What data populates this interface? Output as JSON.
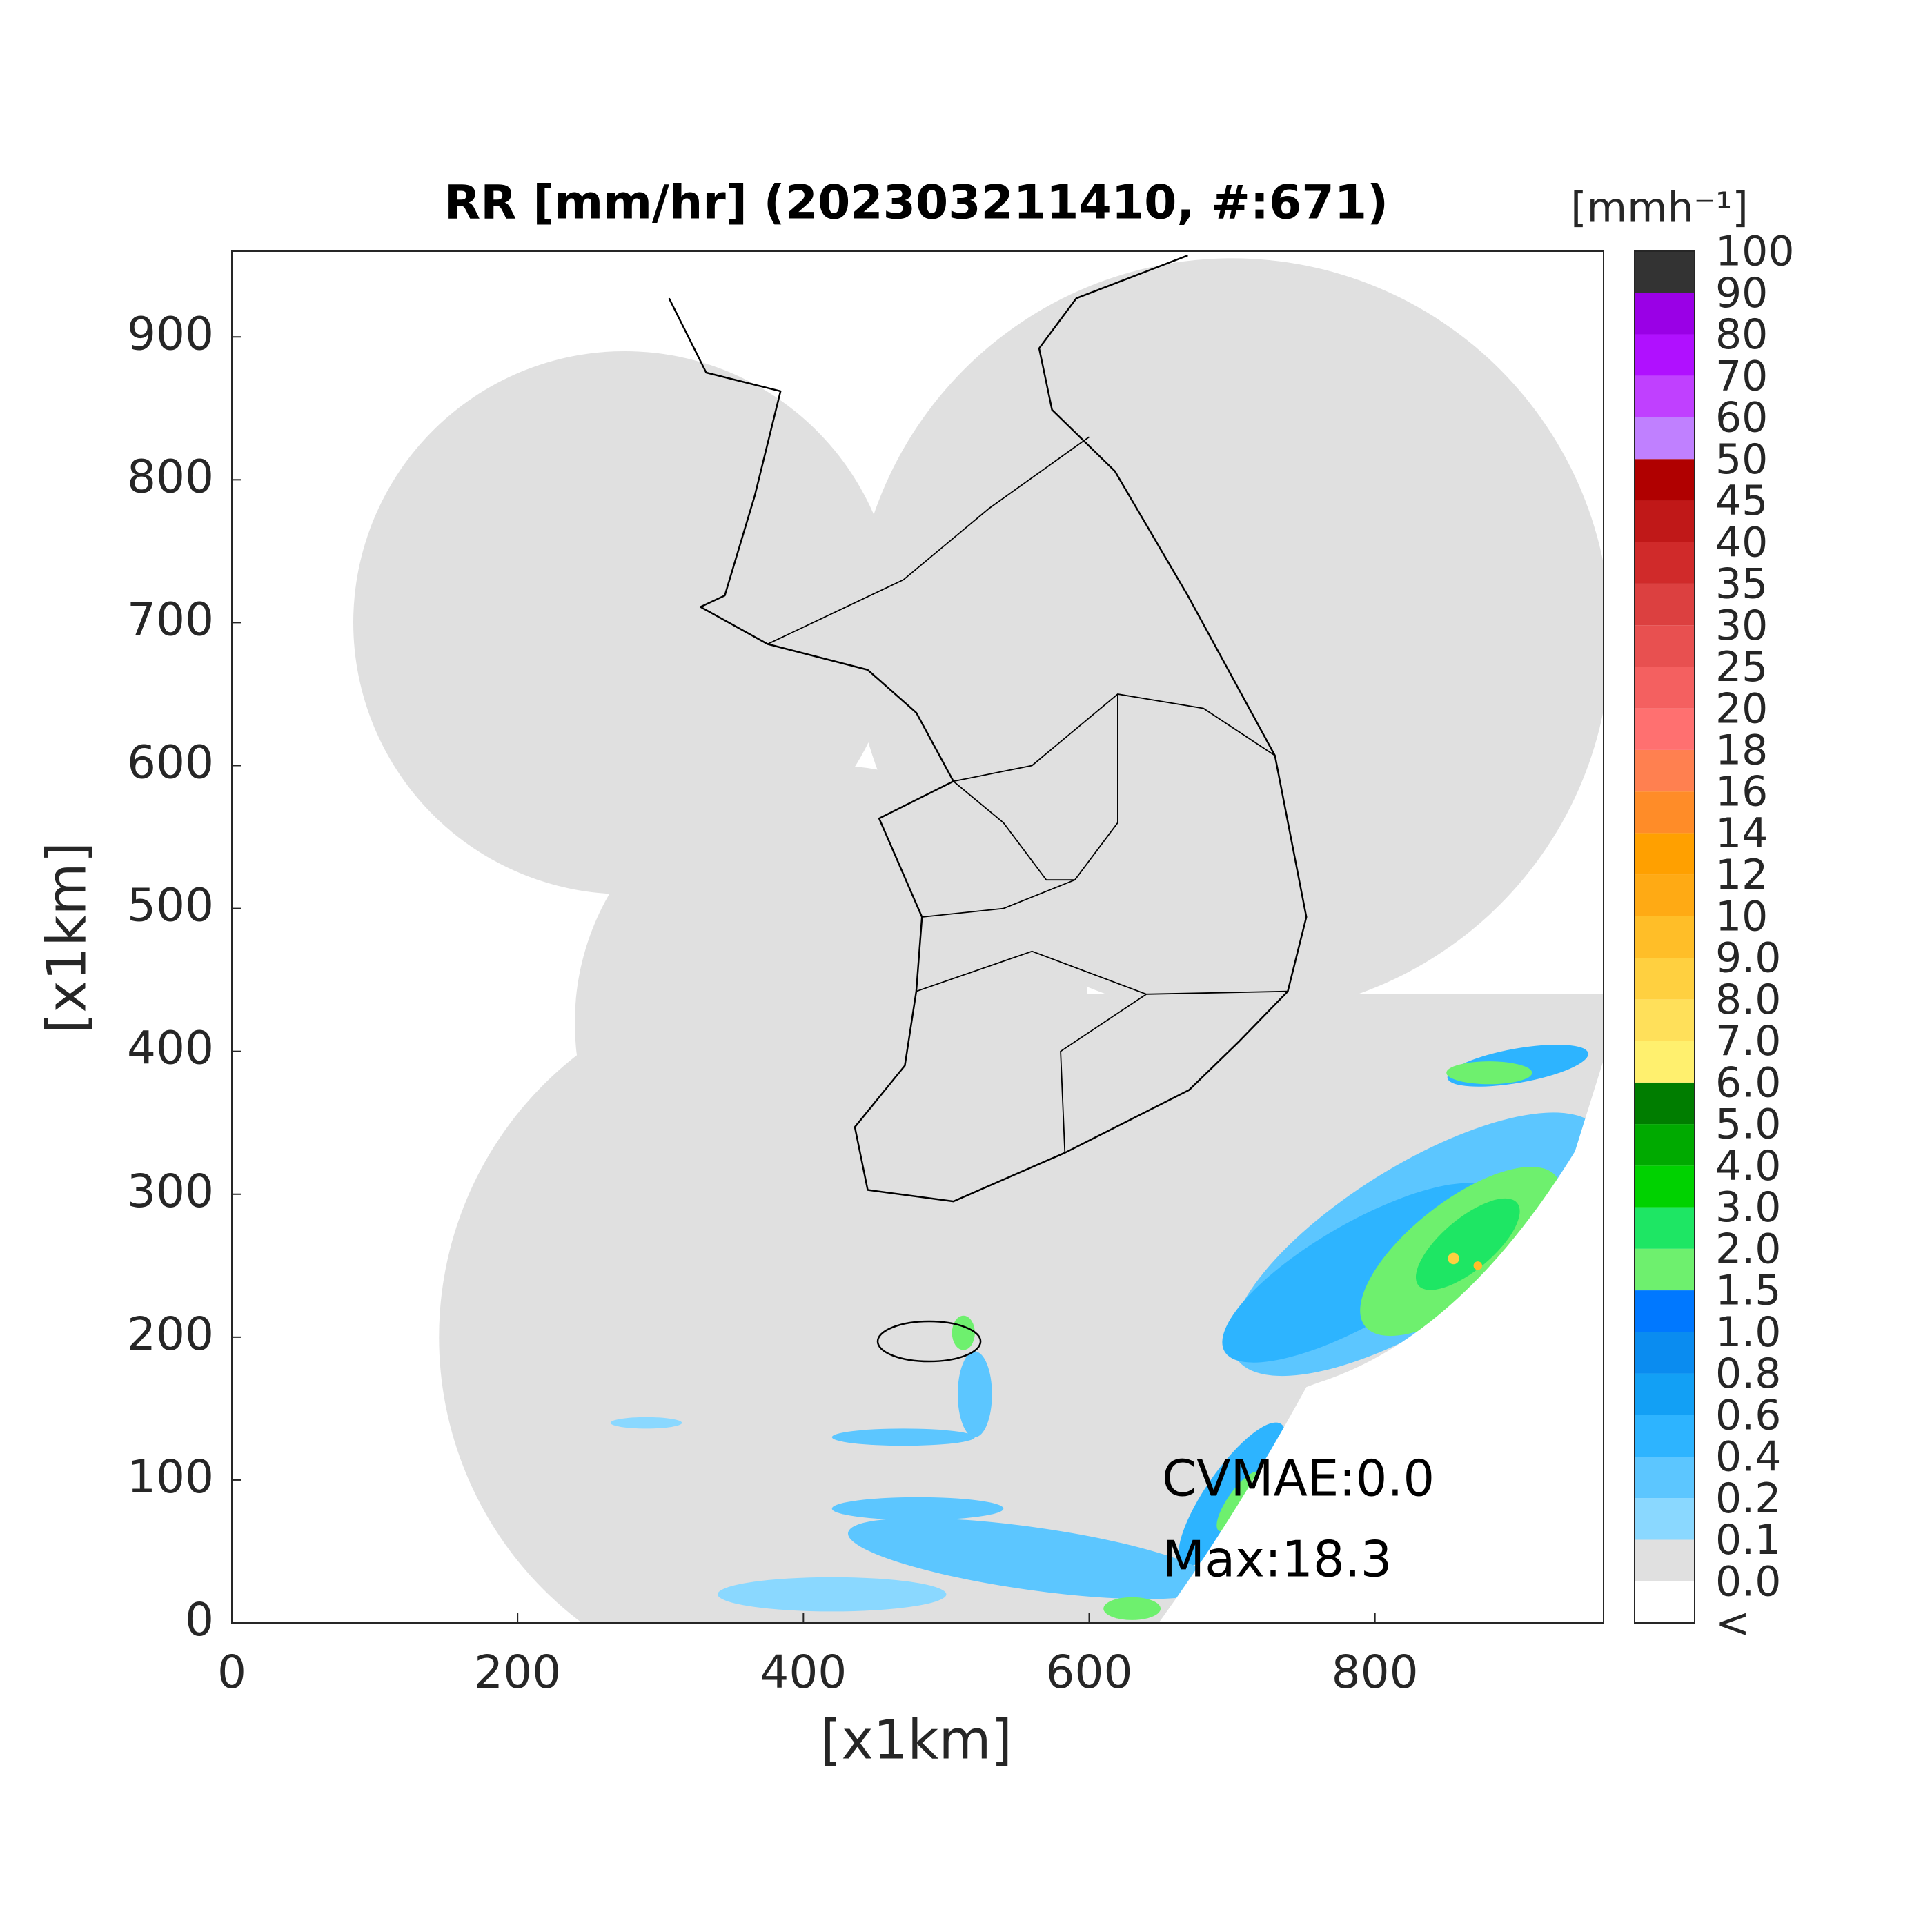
{
  "chart_data": {
    "type": "map",
    "title": "RR [mm/hr] (202303211410, #:671)",
    "xlabel": "[x1km]",
    "ylabel": "[x1km]",
    "xlim": [
      0,
      960
    ],
    "ylim": [
      0,
      960
    ],
    "xticks": [
      0,
      200,
      400,
      600,
      800
    ],
    "yticks": [
      0,
      100,
      200,
      300,
      400,
      500,
      600,
      700,
      800,
      900
    ],
    "annotations": [
      "CVMAE:0.0",
      "Max:18.3"
    ],
    "colorbar": {
      "title": "[mmh⁻¹]",
      "labels": [
        "<",
        "0.0",
        "0.1",
        "0.2",
        "0.4",
        "0.6",
        "0.8",
        "1.0",
        "1.5",
        "2.0",
        "3.0",
        "4.0",
        "5.0",
        "6.0",
        "7.0",
        "8.0",
        "9.0",
        "10",
        "12",
        "14",
        "16",
        "18",
        "20",
        "25",
        "30",
        "35",
        "40",
        "45",
        "50",
        "60",
        "70",
        "80",
        "90",
        "100"
      ],
      "colors": [
        "#ffffff",
        "#e0e0e0",
        "#8ad8ff",
        "#5cc6ff",
        "#2db4ff",
        "#12a0f5",
        "#0a8cf0",
        "#0078ff",
        "#6ef06e",
        "#1ee664",
        "#00d200",
        "#00aa00",
        "#007d00",
        "#fff06e",
        "#ffe05a",
        "#ffd040",
        "#ffbe28",
        "#ffaa14",
        "#ffa000",
        "#ff8c28",
        "#ff8050",
        "#ff7070",
        "#f46060",
        "#e85050",
        "#dc4040",
        "#d02a2a",
        "#c01818",
        "#b00000",
        "#c080ff",
        "#c040ff",
        "#b010ff",
        "#9a00e6",
        "#333333"
      ]
    }
  }
}
